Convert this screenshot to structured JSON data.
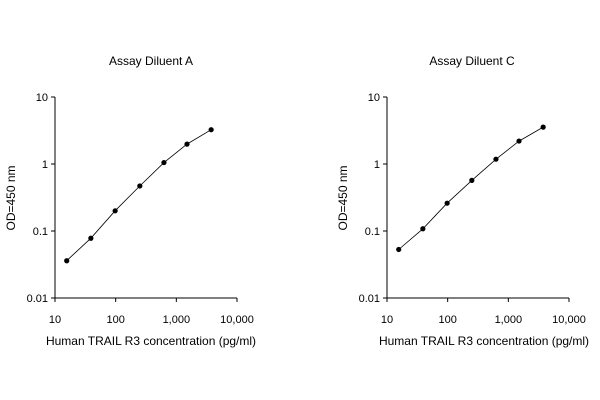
{
  "chart_data": [
    {
      "type": "line",
      "title": "Assay Diluent A",
      "xlabel": "Human TRAIL R3 concentration (pg/ml)",
      "ylabel": "OD=450 nm",
      "xscale": "log",
      "yscale": "log",
      "xlim": [
        10,
        10000
      ],
      "ylim": [
        0.01,
        10
      ],
      "xticks": [
        "10",
        "100",
        "1,000",
        "10,000"
      ],
      "yticks": [
        "0.01",
        "0.1",
        "1",
        "10"
      ],
      "grid": false,
      "legend": "none",
      "series": [
        {
          "x": [
            15.6,
            39,
            98,
            250,
            625,
            1500,
            3750
          ],
          "y": [
            0.036,
            0.078,
            0.2,
            0.47,
            1.05,
            1.98,
            3.25
          ]
        }
      ]
    },
    {
      "type": "line",
      "title": "Assay Diluent C",
      "xlabel": "Human TRAIL R3 concentration (pg/ml)",
      "ylabel": "OD=450 nm",
      "xscale": "log",
      "yscale": "log",
      "xlim": [
        10,
        10000
      ],
      "ylim": [
        0.01,
        10
      ],
      "xticks": [
        "10",
        "100",
        "1,000",
        "10,000"
      ],
      "yticks": [
        "0.01",
        "0.1",
        "1",
        "10"
      ],
      "grid": false,
      "legend": "none",
      "series": [
        {
          "x": [
            15.6,
            39,
            98,
            250,
            625,
            1500,
            3750
          ],
          "y": [
            0.053,
            0.108,
            0.26,
            0.57,
            1.18,
            2.2,
            3.55
          ]
        }
      ]
    }
  ]
}
